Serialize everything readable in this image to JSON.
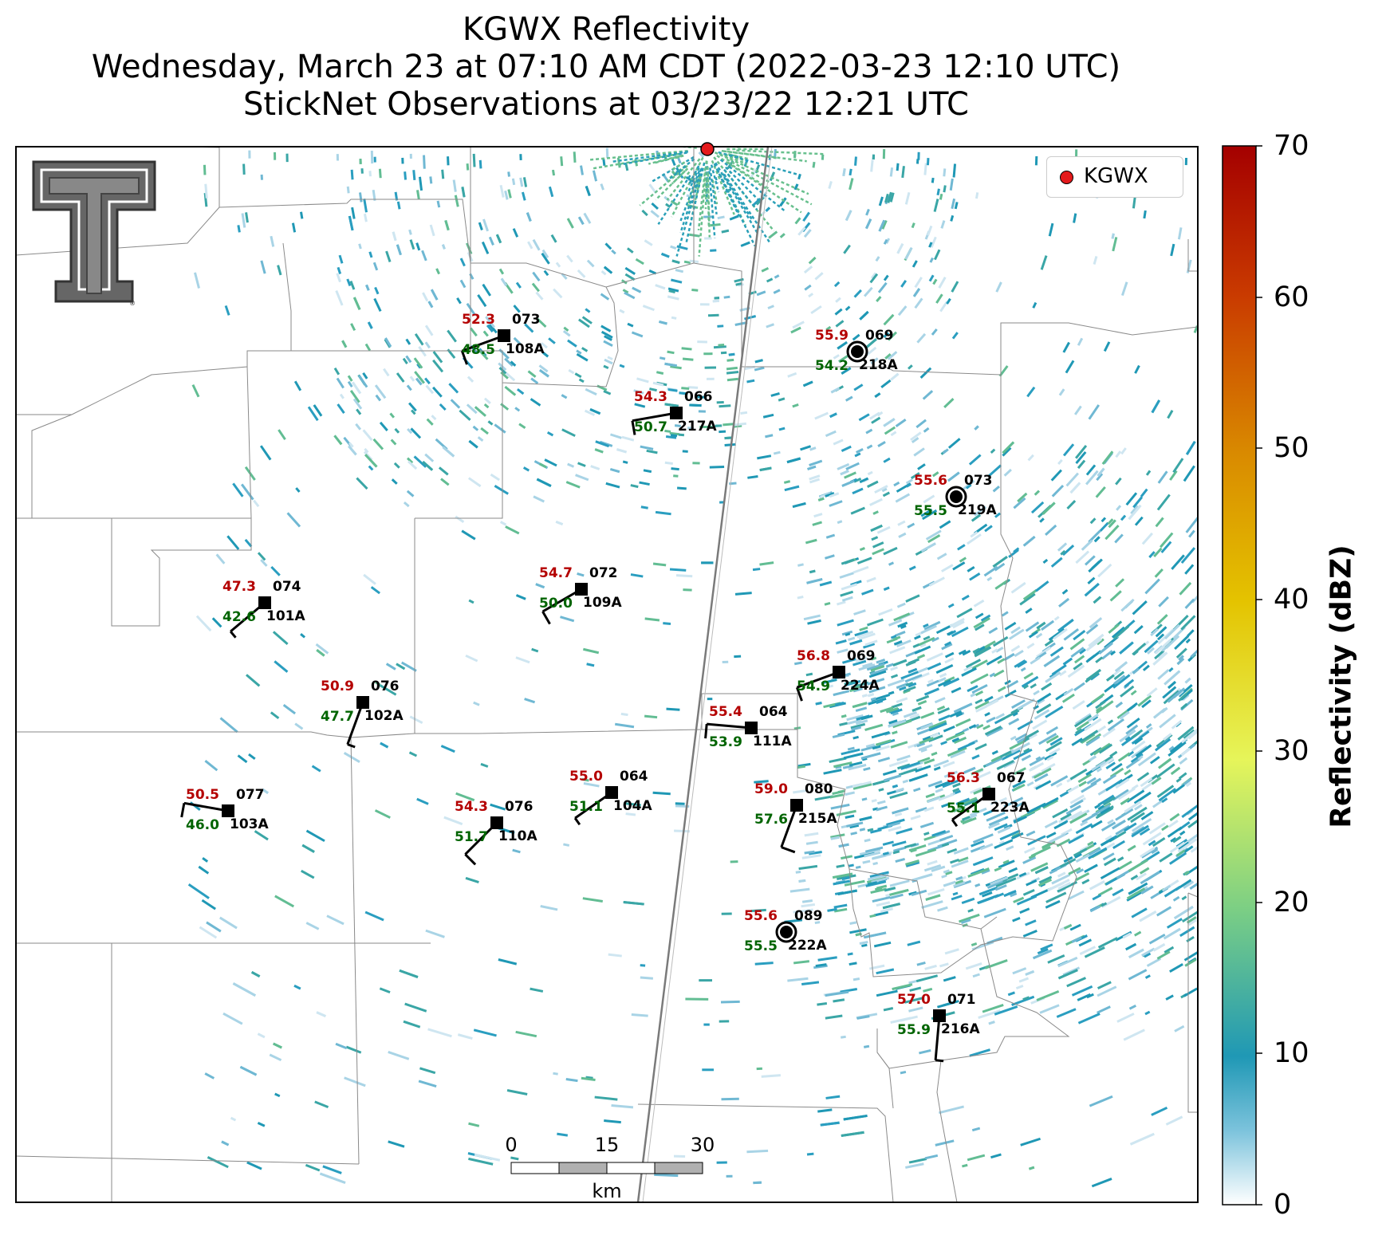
{
  "title": {
    "line1": "KGWX Reflectivity",
    "line2": "Wednesday, March 23 at 07:10 AM CDT (2022-03-23 12:10 UTC)",
    "line3": "StickNet Observations at 03/23/22 12:21 UTC"
  },
  "legend": {
    "label": "KGWX",
    "marker_color": "#e41a1c"
  },
  "colorbar": {
    "label": "Reflectivity (dBZ)",
    "min": 0,
    "max": 70,
    "ticks": [
      "0",
      "10",
      "20",
      "30",
      "40",
      "50",
      "60",
      "70"
    ],
    "colors": [
      "#ffffff",
      "#1f98b5",
      "#7ccf84",
      "#e6f55a",
      "#e4c300",
      "#d98a00",
      "#c93a00",
      "#a40000"
    ]
  },
  "scale_bar": {
    "ticks": [
      "0",
      "15",
      "30"
    ],
    "unit": "km"
  },
  "logo": {
    "name": "Texas Tech double-T logo"
  },
  "stations": [
    {
      "id": "108A",
      "temp": "52.3",
      "dew": "48.5",
      "value": "073",
      "calm": false,
      "dir": 250,
      "spd": 10
    },
    {
      "id": "218A",
      "temp": "55.9",
      "dew": "54.2",
      "value": "069",
      "calm": true
    },
    {
      "id": "217A",
      "temp": "54.3",
      "dew": "50.7",
      "value": "066",
      "calm": false,
      "dir": 260,
      "spd": 10
    },
    {
      "id": "219A",
      "temp": "55.6",
      "dew": "55.5",
      "value": "073",
      "calm": true
    },
    {
      "id": "101A",
      "temp": "47.3",
      "dew": "42.6",
      "value": "074",
      "calm": false,
      "dir": 230,
      "spd": 5
    },
    {
      "id": "109A",
      "temp": "54.7",
      "dew": "50.0",
      "value": "072",
      "calm": false,
      "dir": 240,
      "spd": 10
    },
    {
      "id": "224A",
      "temp": "56.8",
      "dew": "54.9",
      "value": "069",
      "calm": false,
      "dir": 250,
      "spd": 10
    },
    {
      "id": "102A",
      "temp": "50.9",
      "dew": "47.7",
      "value": "076",
      "calm": false,
      "dir": 200,
      "spd": 5
    },
    {
      "id": "111A",
      "temp": "55.4",
      "dew": "53.9",
      "value": "064",
      "calm": false,
      "dir": 275,
      "spd": 10
    },
    {
      "id": "103A",
      "temp": "50.5",
      "dew": "46.0",
      "value": "077",
      "calm": false,
      "dir": 280,
      "spd": 10
    },
    {
      "id": "110A",
      "temp": "54.3",
      "dew": "51.7",
      "value": "076",
      "calm": false,
      "dir": 225,
      "spd": 10
    },
    {
      "id": "104A",
      "temp": "55.0",
      "dew": "51.1",
      "value": "064",
      "calm": false,
      "dir": 235,
      "spd": 5
    },
    {
      "id": "215A",
      "temp": "59.0",
      "dew": "57.6",
      "value": "080",
      "calm": false,
      "dir": 200,
      "spd": 10
    },
    {
      "id": "223A",
      "temp": "56.3",
      "dew": "55.1",
      "value": "067",
      "calm": false,
      "dir": 235,
      "spd": 5
    },
    {
      "id": "222A",
      "temp": "55.6",
      "dew": "55.5",
      "value": "089",
      "calm": true
    },
    {
      "id": "216A",
      "temp": "57.0",
      "dew": "55.9",
      "value": "071",
      "calm": false,
      "dir": 185,
      "spd": 5
    }
  ]
}
